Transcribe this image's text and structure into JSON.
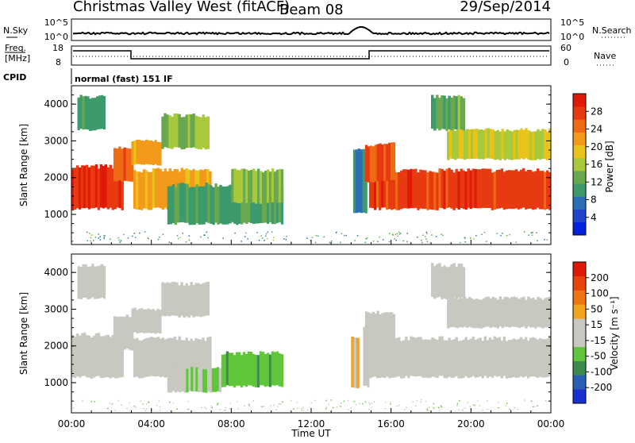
{
  "header": {
    "title": "Christmas Valley West (fitACF)",
    "beam": "Beam 08",
    "date": "29/Sep/2014"
  },
  "noise_panel": {
    "left_label": "N.Sky",
    "right_label": "N.Search",
    "left_ticks": [
      "10^5",
      "10^0"
    ],
    "right_ticks": [
      "10^5",
      "10^0"
    ]
  },
  "freq_panel": {
    "left_label_1": "Freq.",
    "left_label_2": "[MHz]",
    "right_label": "Nave",
    "left_ticks": [
      "18",
      "8"
    ],
    "right_ticks": [
      "60",
      "0"
    ]
  },
  "cpid_panel": {
    "label": "CPID",
    "text": "normal (fast) 151 IF"
  },
  "colors": {
    "frame": "#000000",
    "power_scale": [
      "#0022dd",
      "#1f45c8",
      "#2c6fb4",
      "#3d9a6a",
      "#6aa84f",
      "#a7c93b",
      "#e8c41a",
      "#f39a1a",
      "#f06a15",
      "#e83a10",
      "#e01a08"
    ],
    "velocity_scale": [
      "#1a2fd0",
      "#2a5fb8",
      "#3f8a4e",
      "#5fc63a",
      "#c8c8c0",
      "#c8c8c0",
      "#f2a21c",
      "#ef7414",
      "#e8440c",
      "#e01a08"
    ]
  },
  "chart_data": [
    {
      "type": "heatmap",
      "title": "",
      "quantity": "Power",
      "ylabel": "Slant Range [km]",
      "yticks": [
        "1000",
        "2000",
        "3000",
        "4000"
      ],
      "ylim": [
        180,
        4500
      ],
      "xlim": [
        0,
        24
      ],
      "colorbar_label": "Power [dB]",
      "colorbar_ticks": [
        "28",
        "24",
        "20",
        "16",
        "12",
        "8",
        "4"
      ],
      "colorbar_range": [
        0,
        30
      ],
      "echo_regions": [
        {
          "x": [
            0.0,
            2.6
          ],
          "range": [
            1150,
            2300
          ],
          "value": 27
        },
        {
          "x": [
            2.1,
            3.1
          ],
          "range": [
            1900,
            2800
          ],
          "value": 24
        },
        {
          "x": [
            3.0,
            4.5
          ],
          "range": [
            2350,
            3000
          ],
          "value": 20
        },
        {
          "x": [
            4.5,
            6.9
          ],
          "range": [
            2800,
            3700
          ],
          "value": 14
        },
        {
          "x": [
            3.1,
            7.0
          ],
          "range": [
            1150,
            2200
          ],
          "value": 20
        },
        {
          "x": [
            4.8,
            10.6
          ],
          "range": [
            750,
            1800
          ],
          "value": 10
        },
        {
          "x": [
            8.0,
            10.6
          ],
          "range": [
            1300,
            2200
          ],
          "value": 14
        },
        {
          "x": [
            0.3,
            1.7
          ],
          "range": [
            3300,
            4200
          ],
          "value": 10
        },
        {
          "x": [
            14.1,
            14.8
          ],
          "range": [
            1000,
            2700
          ],
          "value": 8
        },
        {
          "x": [
            14.9,
            24.0
          ],
          "range": [
            1150,
            2200
          ],
          "value": 26
        },
        {
          "x": [
            14.7,
            16.2
          ],
          "range": [
            1900,
            2900
          ],
          "value": 25
        },
        {
          "x": [
            18.8,
            24.0
          ],
          "range": [
            2500,
            3300
          ],
          "value": 16
        },
        {
          "x": [
            18.0,
            19.7
          ],
          "range": [
            3300,
            4200
          ],
          "value": 12
        }
      ]
    },
    {
      "type": "heatmap",
      "title": "",
      "quantity": "Velocity",
      "ylabel": "Slant Range [km]",
      "yticks": [
        "1000",
        "2000",
        "3000",
        "4000"
      ],
      "ylim": [
        180,
        4500
      ],
      "xlim": [
        0,
        24
      ],
      "colorbar_label": "Velocity [m s⁻¹]",
      "colorbar_ticks": [
        "200",
        "100",
        "50",
        "15",
        "-15",
        "-50",
        "-100",
        "-200"
      ],
      "colorbar_range": [
        -250,
        250
      ],
      "xlabel": "Time UT",
      "xticks": [
        "00:00",
        "04:00",
        "08:00",
        "12:00",
        "16:00",
        "20:00",
        "00:00"
      ],
      "echo_regions": [
        {
          "x": [
            0.0,
            2.6
          ],
          "range": [
            1150,
            2300
          ],
          "value": 0
        },
        {
          "x": [
            2.1,
            3.1
          ],
          "range": [
            1900,
            2800
          ],
          "value": -5
        },
        {
          "x": [
            3.0,
            4.5
          ],
          "range": [
            2350,
            3000
          ],
          "value": -30
        },
        {
          "x": [
            4.5,
            6.9
          ],
          "range": [
            2800,
            3700
          ],
          "value": 0
        },
        {
          "x": [
            3.1,
            7.0
          ],
          "range": [
            1150,
            2200
          ],
          "value": 5
        },
        {
          "x": [
            4.8,
            7.5
          ],
          "range": [
            750,
            1400
          ],
          "value": -40
        },
        {
          "x": [
            7.5,
            10.6
          ],
          "range": [
            900,
            1800
          ],
          "value": -80
        },
        {
          "x": [
            0.3,
            1.7
          ],
          "range": [
            3300,
            4200
          ],
          "value": 0
        },
        {
          "x": [
            14.0,
            14.4
          ],
          "range": [
            900,
            2300
          ],
          "value": 60
        },
        {
          "x": [
            14.6,
            14.9
          ],
          "range": [
            900,
            2500
          ],
          "value": 40
        },
        {
          "x": [
            14.9,
            24.0
          ],
          "range": [
            1150,
            2200
          ],
          "value": 0
        },
        {
          "x": [
            14.7,
            16.2
          ],
          "range": [
            1900,
            2900
          ],
          "value": -5
        },
        {
          "x": [
            18.8,
            24.0
          ],
          "range": [
            2500,
            3300
          ],
          "value": 0
        },
        {
          "x": [
            18.0,
            19.7
          ],
          "range": [
            3300,
            4200
          ],
          "value": 0
        }
      ]
    }
  ]
}
